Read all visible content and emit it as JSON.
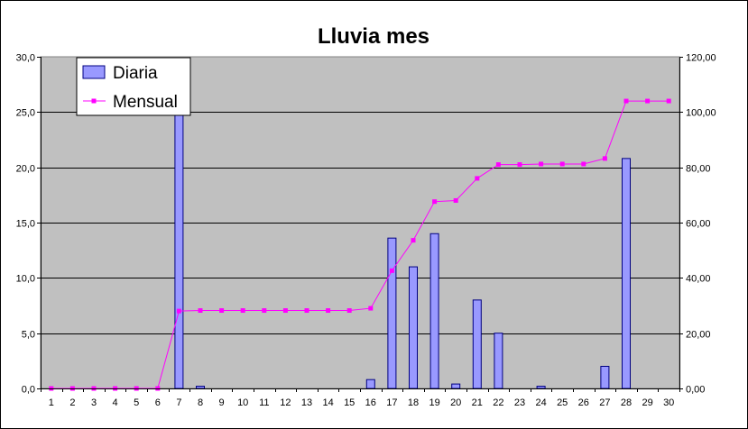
{
  "chart_data": {
    "type": "bar",
    "title": "Lluvia mes",
    "categories": [
      "1",
      "2",
      "3",
      "4",
      "5",
      "6",
      "7",
      "8",
      "9",
      "10",
      "11",
      "12",
      "13",
      "14",
      "15",
      "16",
      "17",
      "18",
      "19",
      "20",
      "21",
      "22",
      "23",
      "24",
      "25",
      "26",
      "27",
      "28",
      "29",
      "30"
    ],
    "series": [
      {
        "name": "Diaria",
        "type": "bar",
        "axis": "left",
        "values": [
          0,
          0,
          0,
          0,
          0,
          0,
          28.0,
          0.2,
          0,
          0,
          0,
          0,
          0,
          0,
          0,
          0.8,
          13.6,
          11.0,
          14.0,
          0.4,
          8.0,
          5.0,
          0,
          0.2,
          0,
          0,
          2.0,
          20.8,
          0,
          0
        ]
      },
      {
        "name": "Mensual",
        "type": "line",
        "axis": "right",
        "values": [
          0,
          0,
          0,
          0,
          0,
          0,
          28.0,
          28.2,
          28.2,
          28.2,
          28.2,
          28.2,
          28.2,
          28.2,
          28.2,
          29.0,
          42.6,
          53.6,
          67.6,
          68.0,
          76.0,
          81.0,
          81.0,
          81.2,
          81.2,
          81.2,
          83.2,
          104.0,
          104.0,
          104.0
        ]
      }
    ],
    "y_left": {
      "min": 0,
      "max": 30,
      "ticks": [
        "0,0",
        "5,0",
        "10,0",
        "15,0",
        "20,0",
        "25,0",
        "30,0"
      ]
    },
    "y_right": {
      "min": 0,
      "max": 120,
      "ticks": [
        "0,00",
        "20,00",
        "40,00",
        "60,00",
        "80,00",
        "100,00",
        "120,00"
      ]
    },
    "grid": true,
    "legend": "top-left",
    "colors": {
      "plot_bg": "#c0c0c0",
      "bar_fill": "#9999ff",
      "bar_stroke": "#000080",
      "line": "#ff00ff",
      "grid": "#000000"
    }
  }
}
